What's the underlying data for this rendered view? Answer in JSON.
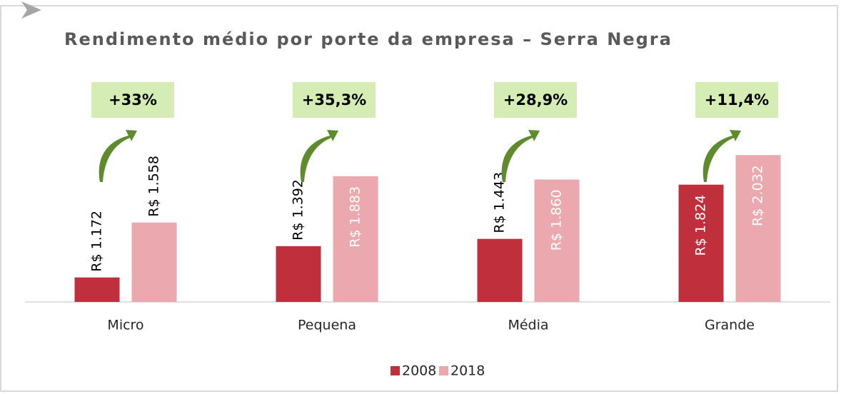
{
  "chart_data": {
    "type": "bar",
    "title": "Rendimento médio por porte da empresa – Serra Negra",
    "categories": [
      "Micro",
      "Pequena",
      "Média",
      "Grande"
    ],
    "series": [
      {
        "name": "2008",
        "color": "#c0303c",
        "values": [
          1172,
          1392,
          1443,
          1824
        ],
        "value_labels": [
          "R$ 1.172",
          "R$ 1.392",
          "R$ 1.443",
          "R$ 1.824"
        ]
      },
      {
        "name": "2018",
        "color": "#eba8ae",
        "values": [
          1558,
          1883,
          1860,
          2032
        ],
        "value_labels": [
          "R$ 1.558",
          "R$ 1.883",
          "R$ 1.860",
          "R$ 2.032"
        ]
      }
    ],
    "annotations": [
      "+33%",
      "+35,3%",
      "+28,9%",
      "+11,4%"
    ],
    "ylim": [
      1000,
      2600
    ],
    "legend": "bottom"
  }
}
